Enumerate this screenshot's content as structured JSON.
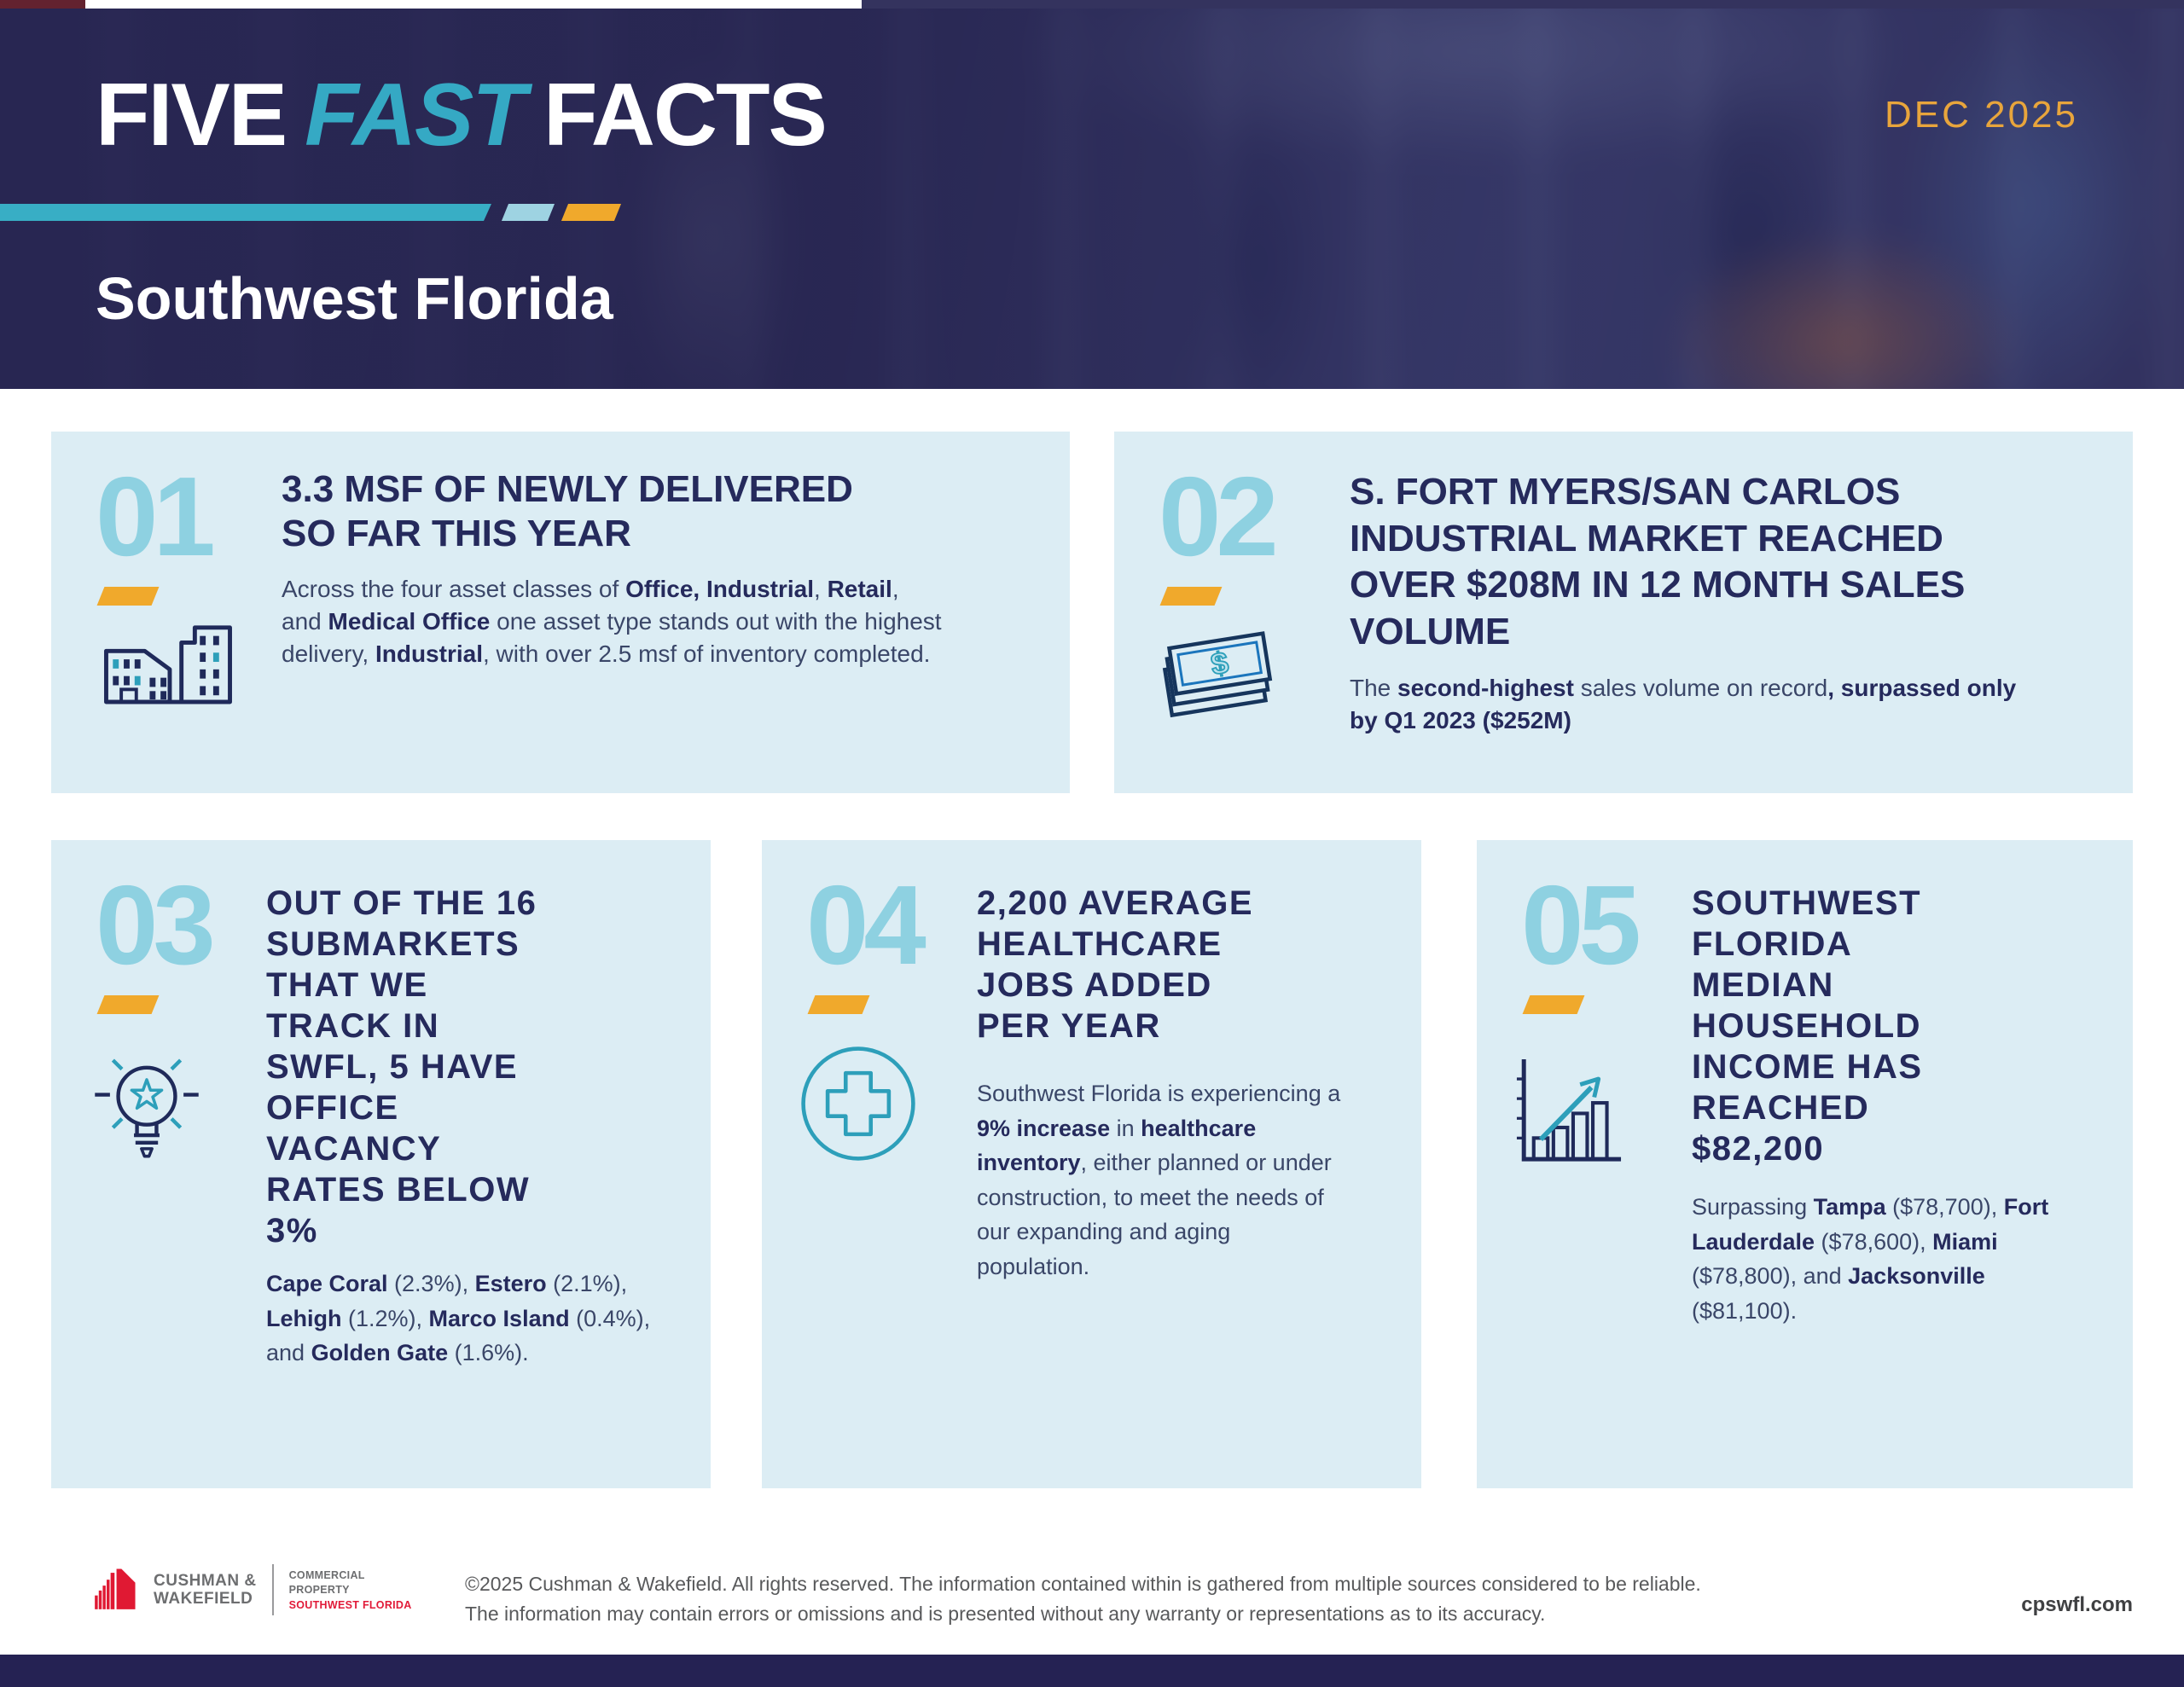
{
  "header": {
    "title": {
      "five": "FIVE",
      "fast": "FAST",
      "facts": "FACTS"
    },
    "subtitle": "Southwest Florida",
    "date": "DEC 2025"
  },
  "cards": [
    {
      "number": "01",
      "icon": "buildings-icon",
      "title": "3.3 MSF OF NEWLY DELIVERED\nSO FAR THIS YEAR",
      "body": [
        {
          "t": "Across the four asset classes of ",
          "b": false
        },
        {
          "t": "Office, Industrial",
          "b": true
        },
        {
          "t": ", ",
          "b": false
        },
        {
          "t": "Retail",
          "b": true
        },
        {
          "t": ", and ",
          "b": false
        },
        {
          "t": "Medical Office",
          "b": true
        },
        {
          "t": " one asset type stands out with the highest delivery, ",
          "b": false
        },
        {
          "t": "Industrial",
          "b": true
        },
        {
          "t": ", with over 2.5 msf of inventory completed.",
          "b": false
        }
      ]
    },
    {
      "number": "02",
      "icon": "money-stack-icon",
      "title": "S. FORT MYERS/SAN CARLOS\nINDUSTRIAL MARKET REACHED\nOVER $208M IN 12 MONTH SALES\nVOLUME",
      "body": [
        {
          "t": "The ",
          "b": false
        },
        {
          "t": "second-highest",
          "b": true
        },
        {
          "t": " sales volume on record",
          "b": false
        },
        {
          "t": ", surpassed only by Q1 2023 ($252M)",
          "b": true
        }
      ]
    },
    {
      "number": "03",
      "icon": "lightbulb-star-icon",
      "title": "OUT OF THE 16\nSUBMARKETS\nTHAT WE\nTRACK IN\nSWFL, 5 HAVE\nOFFICE\nVACANCY\nRATES BELOW\n3%",
      "body": [
        {
          "t": "Cape Coral",
          "b": true
        },
        {
          "t": " (2.3%), ",
          "b": false
        },
        {
          "t": "Estero",
          "b": true
        },
        {
          "t": " (2.1%), ",
          "b": false
        },
        {
          "t": "Lehigh",
          "b": true
        },
        {
          "t": " (1.2%), ",
          "b": false
        },
        {
          "t": "Marco Island",
          "b": true
        },
        {
          "t": " (0.4%), and ",
          "b": false
        },
        {
          "t": "Golden Gate",
          "b": true
        },
        {
          "t": " (1.6%).",
          "b": false
        }
      ]
    },
    {
      "number": "04",
      "icon": "medical-cross-icon",
      "title": "2,200 AVERAGE\nHEALTHCARE\nJOBS ADDED\nPER YEAR",
      "body": [
        {
          "t": "Southwest Florida is experiencing a ",
          "b": false
        },
        {
          "t": "9% increase",
          "b": true
        },
        {
          "t": " in ",
          "b": false
        },
        {
          "t": "healthcare inventory",
          "b": true
        },
        {
          "t": ", either planned or under construction, to meet the needs of our expanding and aging population.",
          "b": false
        }
      ]
    },
    {
      "number": "05",
      "icon": "growth-chart-icon",
      "title": "SOUTHWEST\nFLORIDA\nMEDIAN\nHOUSEHOLD\nINCOME HAS\nREACHED\n$82,200",
      "body": [
        {
          "t": "Surpassing ",
          "b": false
        },
        {
          "t": "Tampa",
          "b": true
        },
        {
          "t": " ($78,700), ",
          "b": false
        },
        {
          "t": "Fort Lauderdale",
          "b": true
        },
        {
          "t": " ($78,600), ",
          "b": false
        },
        {
          "t": "Miami",
          "b": true
        },
        {
          "t": " ($78,800), and ",
          "b": false
        },
        {
          "t": "Jacksonville",
          "b": true
        },
        {
          "t": " ($81,100).",
          "b": false
        }
      ]
    }
  ],
  "footer": {
    "brand": "CUSHMAN &\nWAKEFIELD",
    "division": "COMMERCIAL\nPROPERTY",
    "division_region": "SOUTHWEST FLORIDA",
    "disclaimer": "©2025 Cushman & Wakefield. All rights reserved. The information contained within is gathered from multiple sources considered to be reliable.\nThe information may contain errors or omissions and is presented without any warranty or representations as to its accuracy.",
    "website": "cpswfl.com"
  },
  "colors": {
    "navy_text": "#252a5c",
    "teal_accent": "#38aec5",
    "number_blue": "#8ed1e1",
    "gold_accent": "#f0a92c",
    "card_background": "#dcedf4",
    "header_background": "#2b2a55",
    "cw_red": "#e01933",
    "footer_gray": "#6d6e70",
    "bottom_bar": "#252253",
    "date_gold": "#e8a53c"
  }
}
